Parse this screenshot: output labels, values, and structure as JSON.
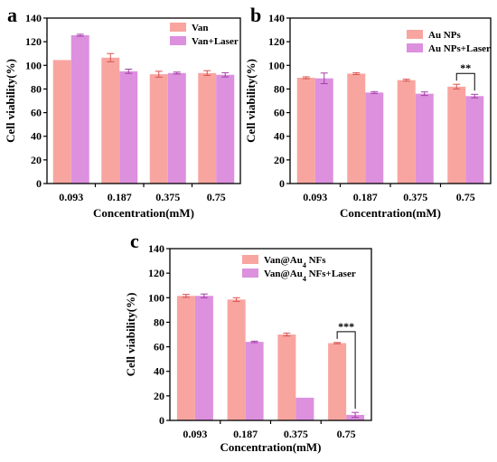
{
  "colors": {
    "series1": "#F8A5A0",
    "series2": "#DC90DE",
    "error1": "#D9534F",
    "error2": "#A23FA6"
  },
  "chart_data": [
    {
      "panel": "a",
      "type": "bar",
      "categories": [
        "0.093",
        "0.187",
        "0.375",
        "0.75"
      ],
      "xlabel": "Concentration(mM)",
      "ylabel": "Cell viability(%)",
      "ylim": [
        0,
        140
      ],
      "yticks": [
        0,
        20,
        40,
        60,
        80,
        100,
        120,
        140
      ],
      "grid": false,
      "legend": "top-right",
      "series": [
        {
          "name": "Van",
          "values": [
            104.5,
            106.5,
            92.5,
            93.5
          ],
          "errors": [
            0,
            3.5,
            2.5,
            2.0
          ]
        },
        {
          "name": "Van+Laser",
          "values": [
            125.5,
            95.0,
            93.5,
            92.0
          ],
          "errors": [
            0.8,
            1.8,
            0.8,
            1.8
          ]
        }
      ],
      "annotations": []
    },
    {
      "panel": "b",
      "type": "bar",
      "categories": [
        "0.093",
        "0.187",
        "0.375",
        "0.75"
      ],
      "xlabel": "Concentration(mM)",
      "ylabel": "Cell viability(%)",
      "ylim": [
        0,
        140
      ],
      "yticks": [
        0,
        20,
        40,
        60,
        80,
        100,
        120,
        140
      ],
      "grid": false,
      "legend": "top-right",
      "series": [
        {
          "name": "Au NPs",
          "values": [
            89.5,
            93.0,
            87.5,
            82.0
          ],
          "errors": [
            0.8,
            0.8,
            0.8,
            2.0
          ]
        },
        {
          "name": "Au NPs+Laser",
          "values": [
            89.0,
            77.0,
            76.0,
            74.0
          ],
          "errors": [
            4.5,
            0.8,
            1.5,
            1.5
          ]
        }
      ],
      "annotations": [
        {
          "category": "0.75",
          "text": "**"
        }
      ]
    },
    {
      "panel": "c",
      "type": "bar",
      "categories": [
        "0.093",
        "0.187",
        "0.375",
        "0.75"
      ],
      "xlabel": "Concentration(mM)",
      "ylabel": "Cell viability(%)",
      "ylim": [
        0,
        140
      ],
      "yticks": [
        0,
        20,
        40,
        60,
        80,
        100,
        120,
        140
      ],
      "grid": false,
      "legend": "top-right",
      "series": [
        {
          "name": "Van@Au",
          "name_sub": "4",
          "name_tail": " NFs",
          "values": [
            101.5,
            98.5,
            70.0,
            63.0
          ],
          "errors": [
            1.2,
            1.5,
            1.2,
            0.5
          ]
        },
        {
          "name": "Van@Au",
          "name_sub": "4",
          "name_tail": " NFs+Laser",
          "values": [
            101.5,
            64.0,
            18.5,
            4.5
          ],
          "errors": [
            1.5,
            0.6,
            0,
            2.0
          ]
        }
      ],
      "annotations": [
        {
          "category": "0.75",
          "text": "***"
        }
      ]
    }
  ]
}
